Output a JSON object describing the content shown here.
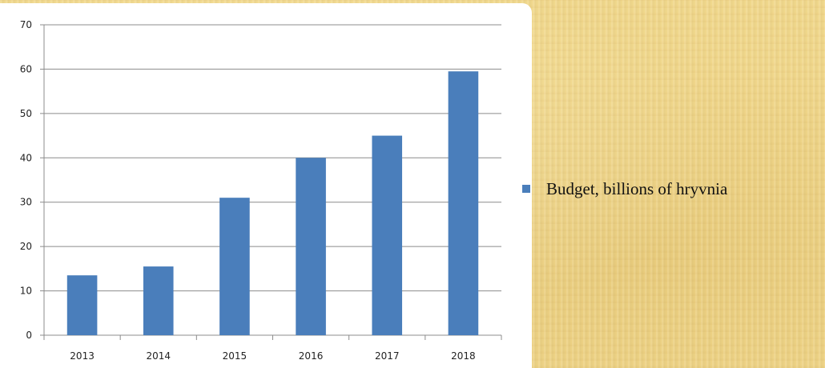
{
  "chart_data": {
    "type": "bar",
    "categories": [
      "2013",
      "2014",
      "2015",
      "2016",
      "2017",
      "2018"
    ],
    "series": [
      {
        "name": "Budget, billions of hryvnia",
        "values": [
          13.5,
          15.5,
          31,
          40,
          45,
          59.5
        ]
      }
    ],
    "yticks": [
      "0",
      "10",
      "20",
      "30",
      "40",
      "50",
      "60",
      "70"
    ],
    "ylim": [
      0,
      70
    ],
    "grid": true,
    "legend_position": "right",
    "bar_color": "#4a7ebb"
  }
}
